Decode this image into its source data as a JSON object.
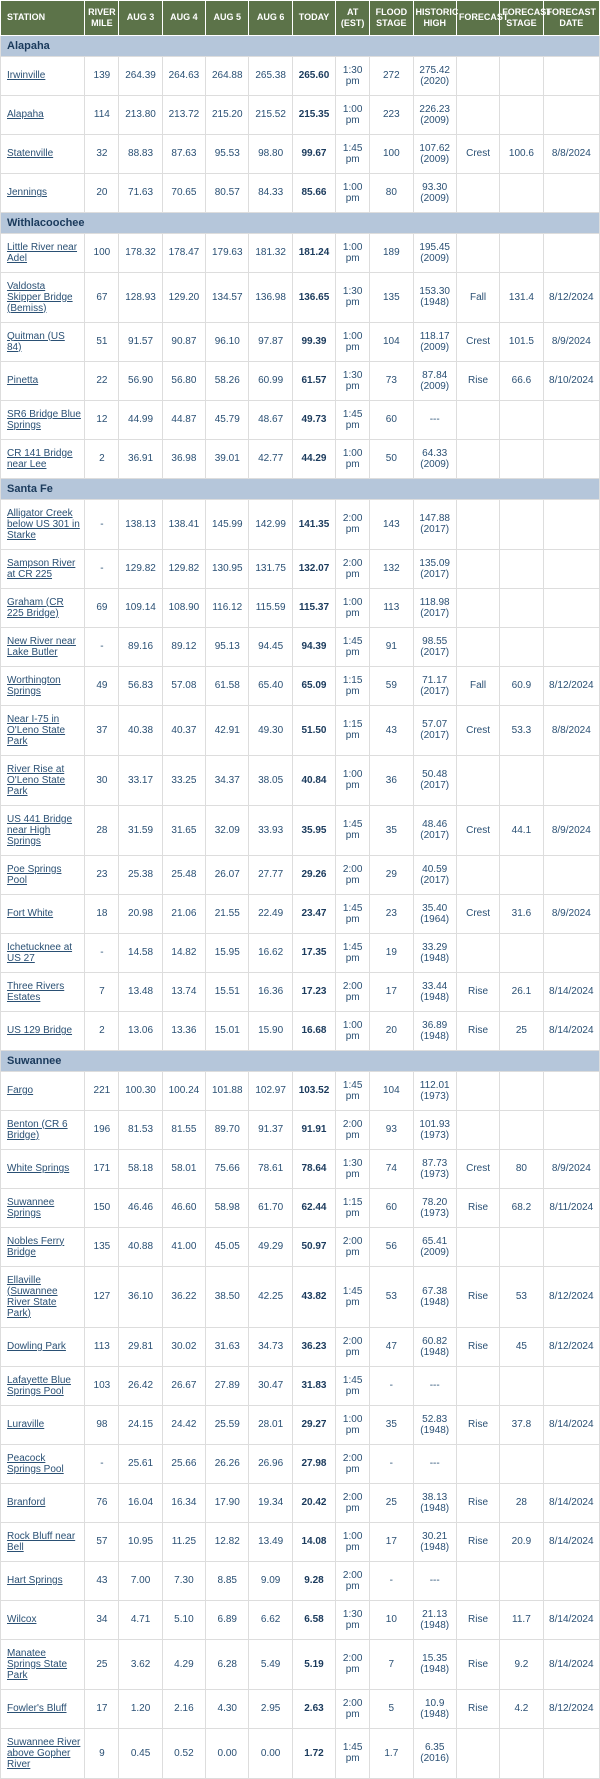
{
  "headers": [
    "STATION",
    "RIVER MILE",
    "AUG 3",
    "AUG 4",
    "AUG 5",
    "AUG 6",
    "TODAY",
    "AT (EST)",
    "FLOOD STAGE",
    "HISTORIC HIGH",
    "FORECAST",
    "FORECAST STAGE",
    "FORECAST DATE"
  ],
  "regions": [
    {
      "name": "Alapaha",
      "rows": [
        {
          "station": "Irwinville",
          "mile": "139",
          "d": [
            "264.39",
            "264.63",
            "264.88",
            "265.38"
          ],
          "today": "265.60",
          "at": "1:30 pm",
          "flood": "272",
          "hist": "275.42 (2020)",
          "fc": "",
          "fs": "",
          "fd": ""
        },
        {
          "station": "Alapaha",
          "mile": "114",
          "d": [
            "213.80",
            "213.72",
            "215.20",
            "215.52"
          ],
          "today": "215.35",
          "at": "1:00 pm",
          "flood": "223",
          "hist": "226.23 (2009)",
          "fc": "",
          "fs": "",
          "fd": ""
        },
        {
          "station": "Statenville",
          "mile": "32",
          "d": [
            "88.83",
            "87.63",
            "95.53",
            "98.80"
          ],
          "today": "99.67",
          "at": "1:45 pm",
          "flood": "100",
          "hist": "107.62 (2009)",
          "fc": "Crest",
          "fs": "100.6",
          "fd": "8/8/2024"
        },
        {
          "station": "Jennings",
          "mile": "20",
          "d": [
            "71.63",
            "70.65",
            "80.57",
            "84.33"
          ],
          "today": "85.66",
          "at": "1:00 pm",
          "flood": "80",
          "hist": "93.30 (2009)",
          "fc": "",
          "fs": "",
          "fd": ""
        }
      ]
    },
    {
      "name": "Withlacoochee",
      "rows": [
        {
          "station": "Little River near Adel",
          "mile": "100",
          "d": [
            "178.32",
            "178.47",
            "179.63",
            "181.32"
          ],
          "today": "181.24",
          "at": "1:00 pm",
          "flood": "189",
          "hist": "195.45 (2009)",
          "fc": "",
          "fs": "",
          "fd": ""
        },
        {
          "station": "Valdosta Skipper Bridge (Bemiss)",
          "mile": "67",
          "d": [
            "128.93",
            "129.20",
            "134.57",
            "136.98"
          ],
          "today": "136.65",
          "at": "1:30 pm",
          "flood": "135",
          "hist": "153.30 (1948)",
          "fc": "Fall",
          "fs": "131.4",
          "fd": "8/12/2024"
        },
        {
          "station": "Quitman (US 84)",
          "mile": "51",
          "d": [
            "91.57",
            "90.87",
            "96.10",
            "97.87"
          ],
          "today": "99.39",
          "at": "1:00 pm",
          "flood": "104",
          "hist": "118.17 (2009)",
          "fc": "Crest",
          "fs": "101.5",
          "fd": "8/9/2024"
        },
        {
          "station": "Pinetta",
          "mile": "22",
          "d": [
            "56.90",
            "56.80",
            "58.26",
            "60.99"
          ],
          "today": "61.57",
          "at": "1:30 pm",
          "flood": "73",
          "hist": "87.84 (2009)",
          "fc": "Rise",
          "fs": "66.6",
          "fd": "8/10/2024"
        },
        {
          "station": "SR6 Bridge Blue Springs",
          "mile": "12",
          "d": [
            "44.99",
            "44.87",
            "45.79",
            "48.67"
          ],
          "today": "49.73",
          "at": "1:45 pm",
          "flood": "60",
          "hist": "---",
          "fc": "",
          "fs": "",
          "fd": ""
        },
        {
          "station": "CR 141 Bridge near Lee",
          "mile": "2",
          "d": [
            "36.91",
            "36.98",
            "39.01",
            "42.77"
          ],
          "today": "44.29",
          "at": "1:00 pm",
          "flood": "50",
          "hist": "64.33 (2009)",
          "fc": "",
          "fs": "",
          "fd": ""
        }
      ]
    },
    {
      "name": "Santa Fe",
      "rows": [
        {
          "station": "Alligator Creek below US 301 in Starke",
          "mile": "-",
          "d": [
            "138.13",
            "138.41",
            "145.99",
            "142.99"
          ],
          "today": "141.35",
          "at": "2:00 pm",
          "flood": "143",
          "hist": "147.88 (2017)",
          "fc": "",
          "fs": "",
          "fd": ""
        },
        {
          "station": "Sampson River at CR 225",
          "mile": "-",
          "d": [
            "129.82",
            "129.82",
            "130.95",
            "131.75"
          ],
          "today": "132.07",
          "at": "2:00 pm",
          "flood": "132",
          "hist": "135.09 (2017)",
          "fc": "",
          "fs": "",
          "fd": ""
        },
        {
          "station": "Graham (CR 225 Bridge)",
          "mile": "69",
          "d": [
            "109.14",
            "108.90",
            "116.12",
            "115.59"
          ],
          "today": "115.37",
          "at": "1:00 pm",
          "flood": "113",
          "hist": "118.98 (2017)",
          "fc": "",
          "fs": "",
          "fd": ""
        },
        {
          "station": "New River near Lake Butler",
          "mile": "-",
          "d": [
            "89.16",
            "89.12",
            "95.13",
            "94.45"
          ],
          "today": "94.39",
          "at": "1:45 pm",
          "flood": "91",
          "hist": "98.55 (2017)",
          "fc": "",
          "fs": "",
          "fd": ""
        },
        {
          "station": "Worthington Springs",
          "mile": "49",
          "d": [
            "56.83",
            "57.08",
            "61.58",
            "65.40"
          ],
          "today": "65.09",
          "at": "1:15 pm",
          "flood": "59",
          "hist": "71.17 (2017)",
          "fc": "Fall",
          "fs": "60.9",
          "fd": "8/12/2024"
        },
        {
          "station": "Near I-75 in O'Leno State Park",
          "mile": "37",
          "d": [
            "40.38",
            "40.37",
            "42.91",
            "49.30"
          ],
          "today": "51.50",
          "at": "1:15 pm",
          "flood": "43",
          "hist": "57.07 (2017)",
          "fc": "Crest",
          "fs": "53.3",
          "fd": "8/8/2024"
        },
        {
          "station": "River Rise at O'Leno State Park",
          "mile": "30",
          "d": [
            "33.17",
            "33.25",
            "34.37",
            "38.05"
          ],
          "today": "40.84",
          "at": "1:00 pm",
          "flood": "36",
          "hist": "50.48 (2017)",
          "fc": "",
          "fs": "",
          "fd": ""
        },
        {
          "station": "US 441 Bridge near High Springs",
          "mile": "28",
          "d": [
            "31.59",
            "31.65",
            "32.09",
            "33.93"
          ],
          "today": "35.95",
          "at": "1:45 pm",
          "flood": "35",
          "hist": "48.46 (2017)",
          "fc": "Crest",
          "fs": "44.1",
          "fd": "8/9/2024"
        },
        {
          "station": "Poe Springs Pool",
          "mile": "23",
          "d": [
            "25.38",
            "25.48",
            "26.07",
            "27.77"
          ],
          "today": "29.26",
          "at": "2:00 pm",
          "flood": "29",
          "hist": "40.59 (2017)",
          "fc": "",
          "fs": "",
          "fd": ""
        },
        {
          "station": "Fort White",
          "mile": "18",
          "d": [
            "20.98",
            "21.06",
            "21.55",
            "22.49"
          ],
          "today": "23.47",
          "at": "1:45 pm",
          "flood": "23",
          "hist": "35.40 (1964)",
          "fc": "Crest",
          "fs": "31.6",
          "fd": "8/9/2024"
        },
        {
          "station": "Ichetucknee at US 27",
          "mile": "-",
          "d": [
            "14.58",
            "14.82",
            "15.95",
            "16.62"
          ],
          "today": "17.35",
          "at": "1:45 pm",
          "flood": "19",
          "hist": "33.29 (1948)",
          "fc": "",
          "fs": "",
          "fd": ""
        },
        {
          "station": "Three Rivers Estates",
          "mile": "7",
          "d": [
            "13.48",
            "13.74",
            "15.51",
            "16.36"
          ],
          "today": "17.23",
          "at": "2:00 pm",
          "flood": "17",
          "hist": "33.44 (1948)",
          "fc": "Rise",
          "fs": "26.1",
          "fd": "8/14/2024"
        },
        {
          "station": "US 129 Bridge",
          "mile": "2",
          "d": [
            "13.06",
            "13.36",
            "15.01",
            "15.90"
          ],
          "today": "16.68",
          "at": "1:00 pm",
          "flood": "20",
          "hist": "36.89 (1948)",
          "fc": "Rise",
          "fs": "25",
          "fd": "8/14/2024"
        }
      ]
    },
    {
      "name": "Suwannee",
      "rows": [
        {
          "station": "Fargo",
          "mile": "221",
          "d": [
            "100.30",
            "100.24",
            "101.88",
            "102.97"
          ],
          "today": "103.52",
          "at": "1:45 pm",
          "flood": "104",
          "hist": "112.01 (1973)",
          "fc": "",
          "fs": "",
          "fd": ""
        },
        {
          "station": "Benton (CR 6 Bridge)",
          "mile": "196",
          "d": [
            "81.53",
            "81.55",
            "89.70",
            "91.37"
          ],
          "today": "91.91",
          "at": "2:00 pm",
          "flood": "93",
          "hist": "101.93 (1973)",
          "fc": "",
          "fs": "",
          "fd": ""
        },
        {
          "station": "White Springs",
          "mile": "171",
          "d": [
            "58.18",
            "58.01",
            "75.66",
            "78.61"
          ],
          "today": "78.64",
          "at": "1:30 pm",
          "flood": "74",
          "hist": "87.73 (1973)",
          "fc": "Crest",
          "fs": "80",
          "fd": "8/9/2024"
        },
        {
          "station": "Suwannee Springs",
          "mile": "150",
          "d": [
            "46.46",
            "46.60",
            "58.98",
            "61.70"
          ],
          "today": "62.44",
          "at": "1:15 pm",
          "flood": "60",
          "hist": "78.20 (1973)",
          "fc": "Rise",
          "fs": "68.2",
          "fd": "8/11/2024"
        },
        {
          "station": "Nobles Ferry Bridge",
          "mile": "135",
          "d": [
            "40.88",
            "41.00",
            "45.05",
            "49.29"
          ],
          "today": "50.97",
          "at": "2:00 pm",
          "flood": "56",
          "hist": "65.41 (2009)",
          "fc": "",
          "fs": "",
          "fd": ""
        },
        {
          "station": "Ellaville (Suwannee River State Park)",
          "mile": "127",
          "d": [
            "36.10",
            "36.22",
            "38.50",
            "42.25"
          ],
          "today": "43.82",
          "at": "1:45 pm",
          "flood": "53",
          "hist": "67.38 (1948)",
          "fc": "Rise",
          "fs": "53",
          "fd": "8/12/2024"
        },
        {
          "station": "Dowling Park",
          "mile": "113",
          "d": [
            "29.81",
            "30.02",
            "31.63",
            "34.73"
          ],
          "today": "36.23",
          "at": "2:00 pm",
          "flood": "47",
          "hist": "60.82 (1948)",
          "fc": "Rise",
          "fs": "45",
          "fd": "8/12/2024"
        },
        {
          "station": "Lafayette Blue Springs Pool",
          "mile": "103",
          "d": [
            "26.42",
            "26.67",
            "27.89",
            "30.47"
          ],
          "today": "31.83",
          "at": "1:45 pm",
          "flood": "-",
          "hist": "---",
          "fc": "",
          "fs": "",
          "fd": ""
        },
        {
          "station": "Luraville",
          "mile": "98",
          "d": [
            "24.15",
            "24.42",
            "25.59",
            "28.01"
          ],
          "today": "29.27",
          "at": "1:00 pm",
          "flood": "35",
          "hist": "52.83 (1948)",
          "fc": "Rise",
          "fs": "37.8",
          "fd": "8/14/2024"
        },
        {
          "station": "Peacock Springs Pool",
          "mile": "-",
          "d": [
            "25.61",
            "25.66",
            "26.26",
            "26.96"
          ],
          "today": "27.98",
          "at": "2:00 pm",
          "flood": "-",
          "hist": "---",
          "fc": "",
          "fs": "",
          "fd": ""
        },
        {
          "station": "Branford",
          "mile": "76",
          "d": [
            "16.04",
            "16.34",
            "17.90",
            "19.34"
          ],
          "today": "20.42",
          "at": "2:00 pm",
          "flood": "25",
          "hist": "38.13 (1948)",
          "fc": "Rise",
          "fs": "28",
          "fd": "8/14/2024"
        },
        {
          "station": "Rock Bluff near Bell",
          "mile": "57",
          "d": [
            "10.95",
            "11.25",
            "12.82",
            "13.49"
          ],
          "today": "14.08",
          "at": "1:00 pm",
          "flood": "17",
          "hist": "30.21 (1948)",
          "fc": "Rise",
          "fs": "20.9",
          "fd": "8/14/2024"
        },
        {
          "station": "Hart Springs",
          "mile": "43",
          "d": [
            "7.00",
            "7.30",
            "8.85",
            "9.09"
          ],
          "today": "9.28",
          "at": "2:00 pm",
          "flood": "-",
          "hist": "---",
          "fc": "",
          "fs": "",
          "fd": ""
        },
        {
          "station": "Wilcox",
          "mile": "34",
          "d": [
            "4.71",
            "5.10",
            "6.89",
            "6.62"
          ],
          "today": "6.58",
          "at": "1:30 pm",
          "flood": "10",
          "hist": "21.13 (1948)",
          "fc": "Rise",
          "fs": "11.7",
          "fd": "8/14/2024"
        },
        {
          "station": "Manatee Springs State Park",
          "mile": "25",
          "d": [
            "3.62",
            "4.29",
            "6.28",
            "5.49"
          ],
          "today": "5.19",
          "at": "2:00 pm",
          "flood": "7",
          "hist": "15.35 (1948)",
          "fc": "Rise",
          "fs": "9.2",
          "fd": "8/14/2024"
        },
        {
          "station": "Fowler's Bluff",
          "mile": "17",
          "d": [
            "1.20",
            "2.16",
            "4.30",
            "2.95"
          ],
          "today": "2.63",
          "at": "2:00 pm",
          "flood": "5",
          "hist": "10.9 (1948)",
          "fc": "Rise",
          "fs": "4.2",
          "fd": "8/12/2024"
        },
        {
          "station": "Suwannee River above Gopher River",
          "mile": "9",
          "d": [
            "0.45",
            "0.52",
            "0.00",
            "0.00"
          ],
          "today": "1.72",
          "at": "1:45 pm",
          "flood": "1.7",
          "hist": "6.35 (2016)",
          "fc": "",
          "fs": "",
          "fd": ""
        }
      ]
    }
  ]
}
